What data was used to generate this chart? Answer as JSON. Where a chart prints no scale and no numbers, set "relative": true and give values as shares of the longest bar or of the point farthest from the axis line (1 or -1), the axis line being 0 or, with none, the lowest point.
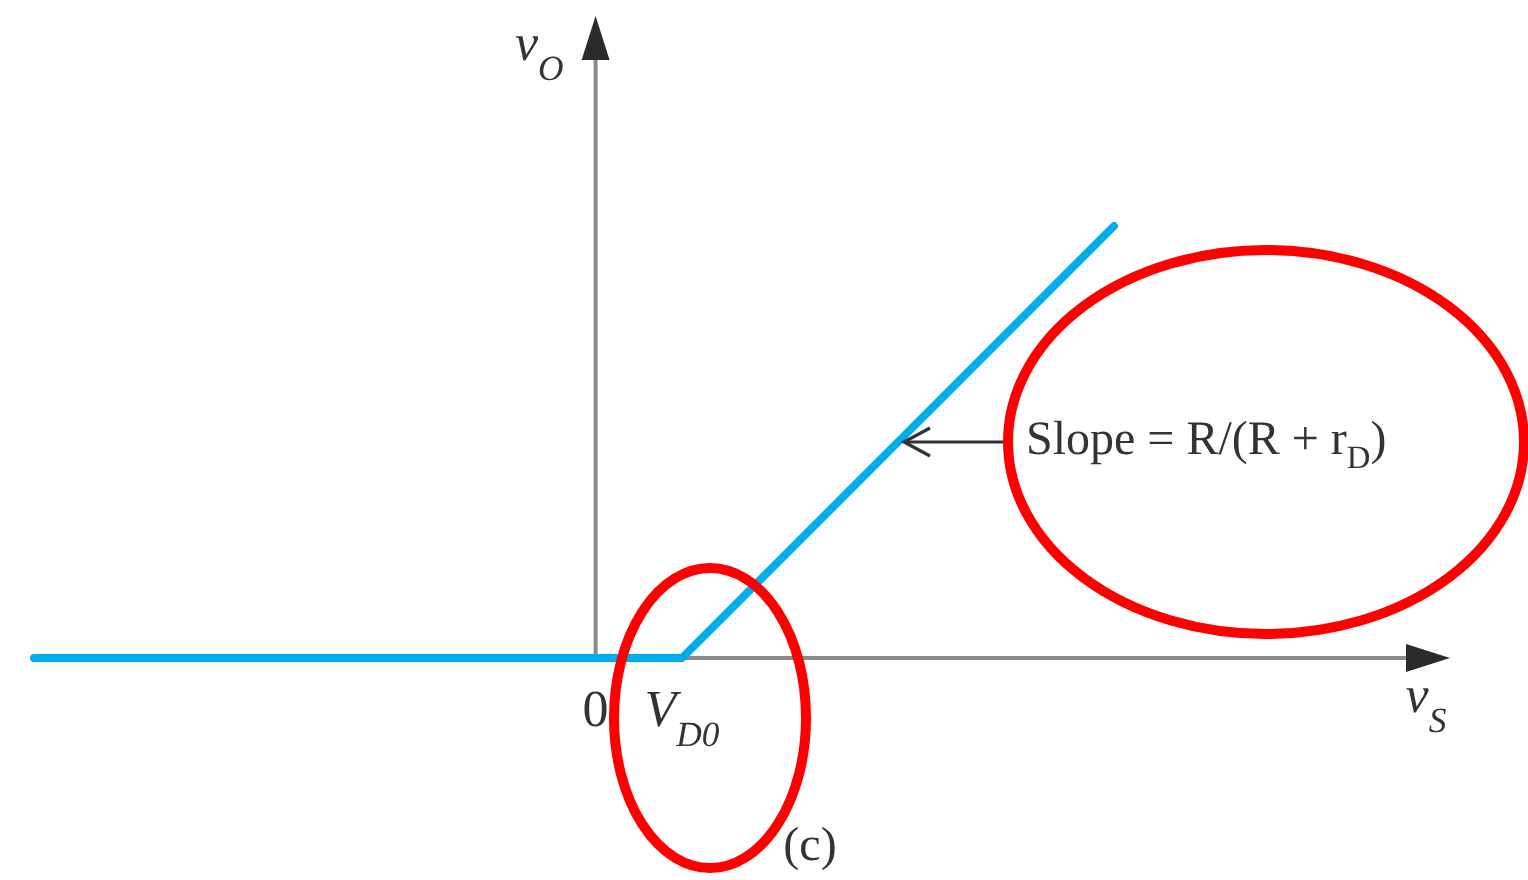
{
  "chart_data": {
    "type": "line",
    "ylabel": "v$_{O}$",
    "categories": [
      null,
      null,
      null,
      null,
      null,
      null,
      null,
      null,
      null,
      null,
      null,
      null,
      null,
      "0",
      null,
      "V$_{D0}$",
      null,
      null,
      null,
      null,
      null,
      null,
      null,
      null,
      null,
      null
    ],
    "series": [
      {
        "color": "#00aeef",
        "values": [
          0,
          0,
          0,
          0,
          0,
          0,
          0,
          0,
          0,
          0,
          0,
          0,
          0,
          0,
          0,
          0,
          0.1,
          0.2,
          0.3,
          0.4,
          0.5,
          0.6,
          0.7,
          0.8,
          0.9,
          1
        ]
      }
    ],
    "relative": true,
    "marker": "none",
    "line_style": "solid",
    "annotations": [
      "Slope = R/(R + r$_{D}$)",
      "(c)",
      "v$_{S}$"
    ]
  }
}
